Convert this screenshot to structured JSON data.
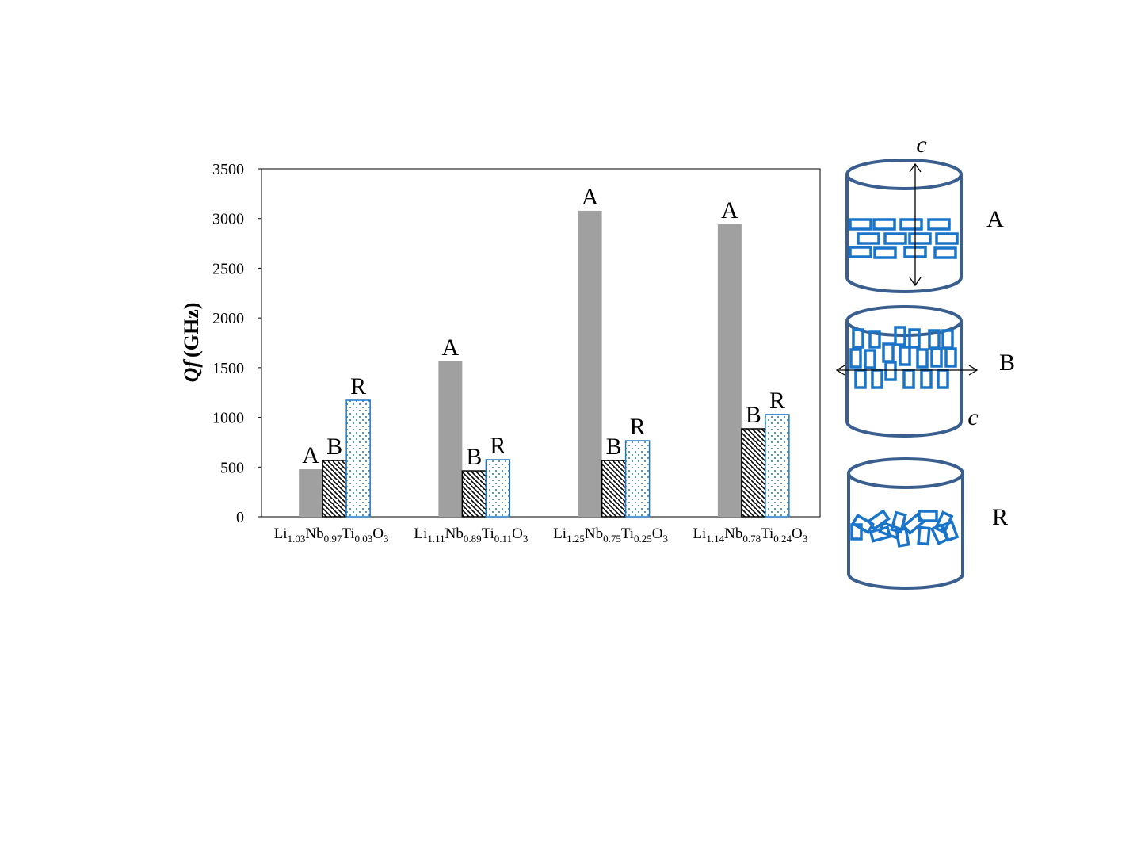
{
  "chart_data": {
    "type": "bar",
    "title": "",
    "xlabel": "",
    "ylabel": "Qf (GHz)",
    "ylabel_parts": {
      "italic": "Qf",
      "unit": "(GHz)"
    },
    "ylim": [
      0,
      3500
    ],
    "yticks": [
      0,
      500,
      1000,
      1500,
      2000,
      2500,
      3000,
      3500
    ],
    "grid": false,
    "categories": [
      "Li1.03Nb0.97Ti0.03O3",
      "Li1.11Nb0.89Ti0.11O3",
      "Li1.25Nb0.75Ti0.25O3",
      "Li1.14Nb0.78Ti0.24O3"
    ],
    "series": [
      {
        "name": "A",
        "values": [
          478,
          1563,
          3078,
          2943
        ],
        "fill": "#a0a0a0",
        "pattern": "solid"
      },
      {
        "name": "B",
        "values": [
          566,
          462,
          566,
          885
        ],
        "fill": "#000000",
        "pattern": "diagonal-hatch"
      },
      {
        "name": "R",
        "values": [
          1172,
          574,
          765,
          1029
        ],
        "fill": "#1f77c4",
        "pattern": "dots"
      }
    ]
  },
  "schematic": {
    "axis_label": "c",
    "items": [
      {
        "label": "A",
        "orientation": "c-axis vertical, platelets horizontal"
      },
      {
        "label": "B",
        "orientation": "c-axis horizontal, platelets vertical"
      },
      {
        "label": "R",
        "orientation": "random"
      }
    ],
    "outline_color": "#3a5f8f",
    "grain_color": "#1a75c8"
  }
}
